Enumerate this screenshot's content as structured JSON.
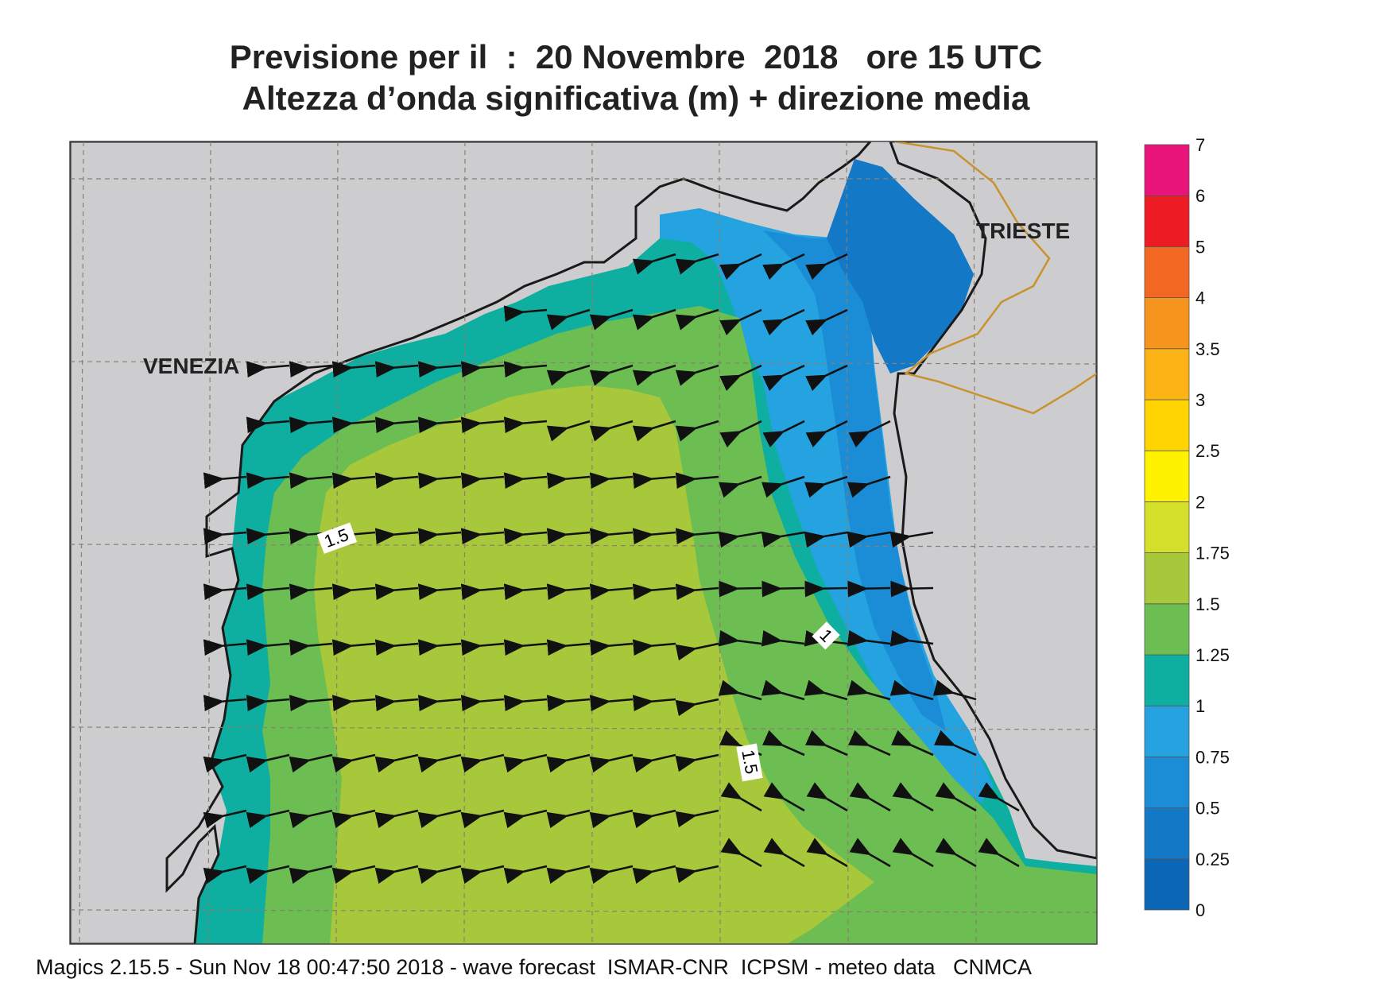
{
  "title": {
    "line1": "Previsione per il  :  20 Novembre  2018   ore 15 UTC",
    "line2": "Altezza d’onda significativa (m) + direzione media"
  },
  "map": {
    "cities": [
      {
        "name": "VENEZIA"
      },
      {
        "name": "TRIESTE"
      }
    ],
    "contour_labels": [
      "1.5",
      "1",
      "1.5"
    ],
    "wave_direction": "arrows pointing mostly west/south-west"
  },
  "legend": {
    "unit": "m",
    "levels": [
      "0",
      "0.25",
      "0.5",
      "0.75",
      "1",
      "1.25",
      "1.5",
      "1.75",
      "2",
      "2.5",
      "3",
      "3.5",
      "4",
      "4.5",
      "5",
      "6",
      "7"
    ],
    "visible_labels": [
      "7",
      "6",
      "5",
      "4",
      "3.5",
      "3",
      "2.5",
      "2",
      "1.75",
      "1.5",
      "1.25",
      "1",
      "0.75",
      "0.5",
      "0.25",
      "0"
    ],
    "colors": [
      "#0b66b6",
      "#1379c6",
      "#1b8cd6",
      "#24a3e0",
      "#0eaea0",
      "#6cbd52",
      "#a8c83b",
      "#d4df2a",
      "#fff200",
      "#ffd400",
      "#fcb316",
      "#f7941d",
      "#f26722",
      "#ed1c24",
      "#e9147a"
    ]
  },
  "colors": {
    "land": "#cdcdcf",
    "coast": "#1a1a1a",
    "border": "#c8922e",
    "grid": "#8a7f70"
  },
  "footer": "Magics 2.15.5 - Sun Nov 18 00:47:50 2018 - wave forecast  ISMAR-CNR  ICPSM - meteo data   CNMCA"
}
